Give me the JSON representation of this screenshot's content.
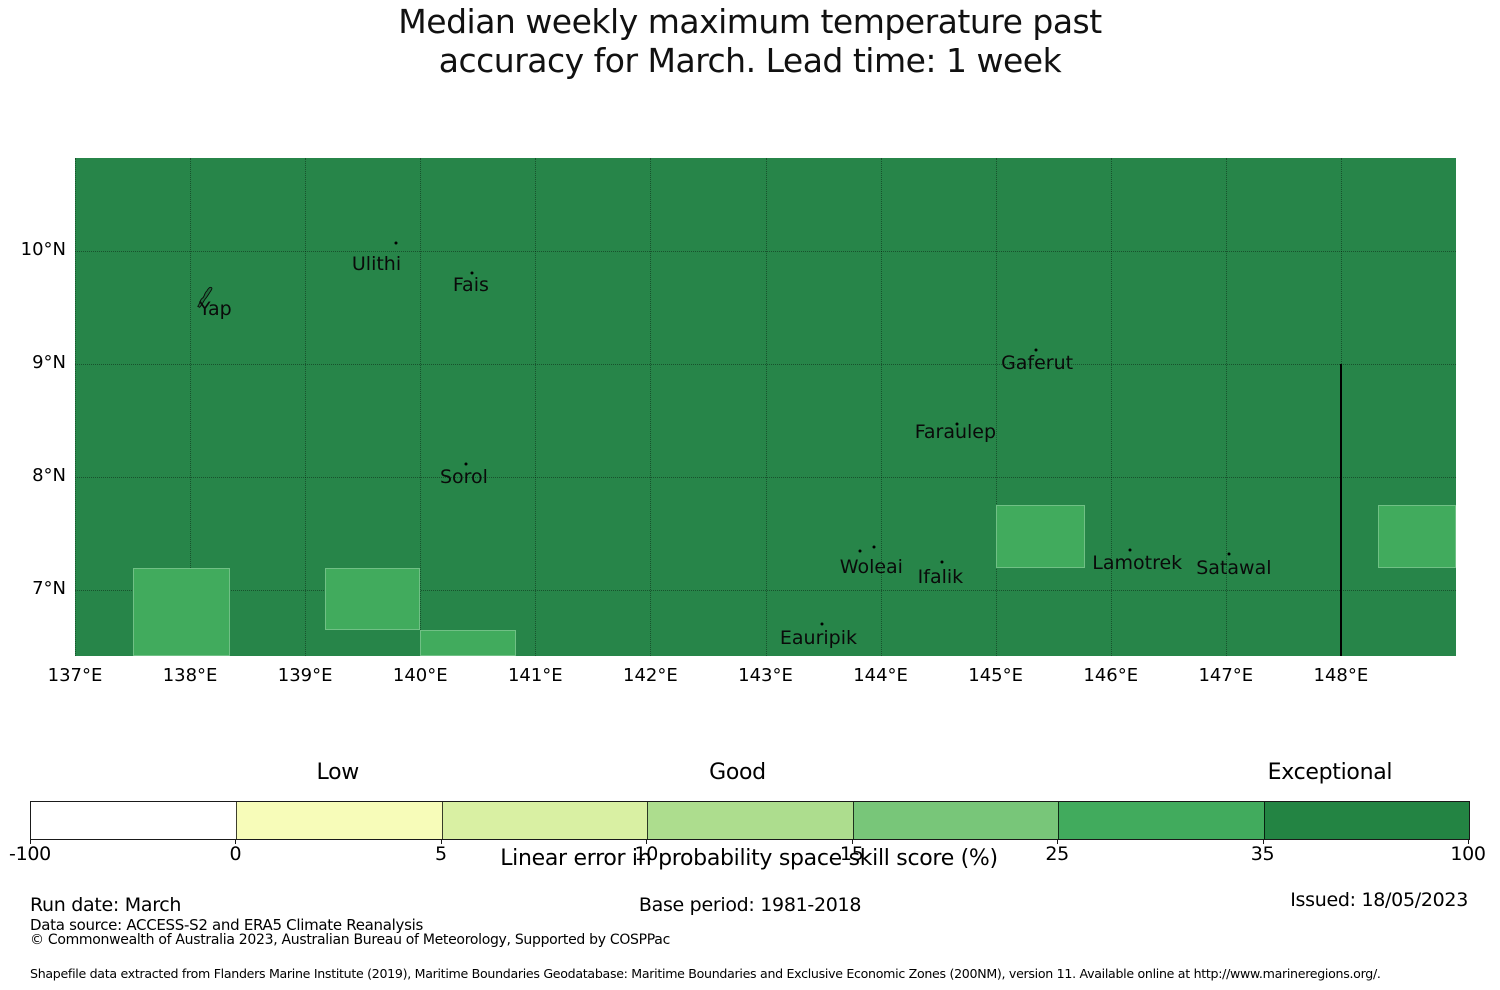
{
  "title": {
    "line1": "Median weekly maximum temperature past",
    "line2": "accuracy for March. Lead time: 1 week"
  },
  "chart_data": {
    "type": "heatmap",
    "description": "Gridded skill-score map (linear error in probability space, %) over the Yap / Woleai region of Micronesia; background filled with the 35-100 bin colour, selected grid cells in the 25-35 bin.",
    "extent": {
      "lon_min": 137.0,
      "lon_max": 149.0,
      "lat_min": 6.42,
      "lat_max": 10.82
    },
    "background": {
      "value_bin": "35-100",
      "color": "#278549"
    },
    "grid": {
      "style": "dotted",
      "color": "rgba(0,0,0,0.38)",
      "lon_lines": [
        137,
        138,
        139,
        140,
        141,
        142,
        143,
        144,
        145,
        146,
        147,
        148
      ],
      "lat_lines": [
        7,
        8,
        9,
        10
      ]
    },
    "x_ticks": [
      {
        "label": "137°E",
        "lon": 137
      },
      {
        "label": "138°E",
        "lon": 138
      },
      {
        "label": "139°E",
        "lon": 139
      },
      {
        "label": "140°E",
        "lon": 140
      },
      {
        "label": "141°E",
        "lon": 141
      },
      {
        "label": "142°E",
        "lon": 142
      },
      {
        "label": "143°E",
        "lon": 143
      },
      {
        "label": "144°E",
        "lon": 144
      },
      {
        "label": "145°E",
        "lon": 145
      },
      {
        "label": "146°E",
        "lon": 146
      },
      {
        "label": "147°E",
        "lon": 147
      },
      {
        "label": "148°E",
        "lon": 148
      }
    ],
    "y_ticks": [
      {
        "label": "10°N",
        "lat": 10
      },
      {
        "label": "9°N",
        "lat": 9
      },
      {
        "label": "8°N",
        "lat": 8
      },
      {
        "label": "7°N",
        "lat": 7
      }
    ],
    "cells": [
      {
        "lon0": 137.5,
        "lon1": 138.35,
        "lat0": 6.42,
        "lat1": 7.2,
        "value_bin": "25-35",
        "color": "#41AB5D"
      },
      {
        "lon0": 139.17,
        "lon1": 140.0,
        "lat0": 6.65,
        "lat1": 7.2,
        "value_bin": "25-35",
        "color": "#41AB5D"
      },
      {
        "lon0": 140.0,
        "lon1": 140.83,
        "lat0": 6.42,
        "lat1": 6.65,
        "value_bin": "25-35",
        "color": "#41AB5D"
      },
      {
        "lon0": 145.0,
        "lon1": 145.78,
        "lat0": 7.2,
        "lat1": 7.75,
        "value_bin": "25-35",
        "color": "#41AB5D"
      },
      {
        "lon0": 148.32,
        "lon1": 149.0,
        "lat0": 7.2,
        "lat1": 7.75,
        "value_bin": "25-35",
        "color": "#41AB5D"
      }
    ],
    "boundary_line": {
      "lon": 148.0,
      "lat_from": 9.0,
      "lat_to": 6.42,
      "color": "#000000"
    },
    "islands": [
      {
        "name": "Yap",
        "label_lon": 138.22,
        "label_lat": 9.49,
        "marker": "outline",
        "marker_lon": 138.13,
        "marker_lat": 9.59
      },
      {
        "name": "Ulithi",
        "label_lon": 139.62,
        "label_lat": 9.88,
        "marker": "dot",
        "marker_lon": 139.79,
        "marker_lat": 10.07
      },
      {
        "name": "Fais",
        "label_lon": 140.44,
        "label_lat": 9.7,
        "marker": "dot",
        "marker_lon": 140.45,
        "marker_lat": 9.8
      },
      {
        "name": "Sorol",
        "label_lon": 140.38,
        "label_lat": 8.0,
        "marker": "dot",
        "marker_lon": 140.4,
        "marker_lat": 8.12
      },
      {
        "name": "Gaferut",
        "label_lon": 145.36,
        "label_lat": 9.01,
        "marker": "dot",
        "marker_lon": 145.35,
        "marker_lat": 9.12
      },
      {
        "name": "Faraulep",
        "label_lon": 144.65,
        "label_lat": 8.4,
        "marker": "dot",
        "marker_lon": 144.66,
        "marker_lat": 8.47
      },
      {
        "name": "Woleai",
        "label_lon": 143.92,
        "label_lat": 7.21,
        "marker": "dot2",
        "marker_lon": 143.82,
        "marker_lat": 7.35,
        "marker2_lon": 143.94,
        "marker2_lat": 7.38
      },
      {
        "name": "Ifalik",
        "label_lon": 144.52,
        "label_lat": 7.12,
        "marker": "dot",
        "marker_lon": 144.53,
        "marker_lat": 7.25
      },
      {
        "name": "Eauripik",
        "label_lon": 143.46,
        "label_lat": 6.58,
        "marker": "dot",
        "marker_lon": 143.49,
        "marker_lat": 6.7
      },
      {
        "name": "Lamotrek",
        "label_lon": 146.23,
        "label_lat": 7.24,
        "marker": "dot",
        "marker_lon": 146.17,
        "marker_lat": 7.36
      },
      {
        "name": "Satawal",
        "label_lon": 147.07,
        "label_lat": 7.2,
        "marker": "dot",
        "marker_lon": 147.03,
        "marker_lat": 7.32
      }
    ],
    "colorbar": {
      "bins": [
        {
          "from": -100,
          "to": 0,
          "color": "#FFFFFF"
        },
        {
          "from": 0,
          "to": 5,
          "color": "#F7FCB9"
        },
        {
          "from": 5,
          "to": 10,
          "color": "#D9F0A3"
        },
        {
          "from": 10,
          "to": 15,
          "color": "#ADDD8E"
        },
        {
          "from": 15,
          "to": 25,
          "color": "#78C679"
        },
        {
          "from": 25,
          "to": 35,
          "color": "#41AB5D"
        },
        {
          "from": 35,
          "to": 100,
          "color": "#238443"
        }
      ],
      "tick_labels": [
        "-100",
        "0",
        "5",
        "10",
        "15",
        "25",
        "35",
        "100"
      ],
      "categories": [
        {
          "label": "Low",
          "pos": 0.214
        },
        {
          "label": "Good",
          "pos": 0.492
        },
        {
          "label": "Exceptional",
          "pos": 0.904
        }
      ],
      "caption": "Linear error in probability space skill score (%)"
    }
  },
  "footer": {
    "run_date": "Run date: March",
    "base_period": "Base period: 1981-2018",
    "issued": "Issued: 18/05/2023",
    "data_source": "Data source: ACCESS-S2 and ERA5 Climate Reanalysis",
    "copyright": "© Commonwealth of Australia 2023, Australian Bureau of Meteorology, Supported by COSPPac",
    "shapefile": "Shapefile data extracted from Flanders Marine Institute (2019), Maritime Boundaries Geodatabase: Maritime Boundaries and Exclusive Economic Zones (200NM), version 11. Available online at http://www.marineregions.org/."
  }
}
